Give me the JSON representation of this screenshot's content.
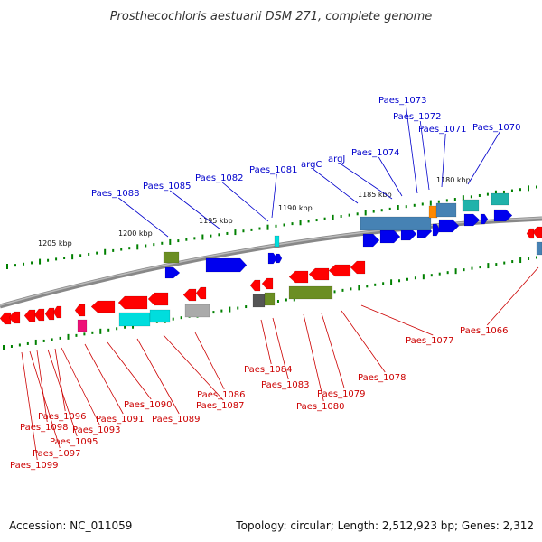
{
  "title": "Prosthecochloris aestuarii DSM 271, complete genome",
  "footer": {
    "accession": "Accession: NC_011059",
    "info": "Topology: circular; Length: 2,512,923 bp; Genes: 2,312"
  },
  "colors": {
    "red": "#ff0000",
    "blue": "#0000ee",
    "cyan": "#00dddd",
    "steelblue": "#4682b4",
    "olive": "#6b8e23",
    "gray": "#aaaaaa",
    "magenta": "#ee1177",
    "orange": "#ff8800",
    "teal": "#20b2aa",
    "tick_green": "#008000",
    "backbone": "#888888",
    "label_blue": "#0000cc",
    "label_red": "#cc0000"
  },
  "scale_ticks": [
    "1205 kbp",
    "1200 kbp",
    "1195 kbp",
    "1190 kbp",
    "1185 kbp",
    "1180 kbp"
  ],
  "top_labels": [
    "Paes_1088",
    "Paes_1085",
    "Paes_1082",
    "Paes_1081",
    "argC",
    "argJ",
    "Paes_1074",
    "Paes_1073",
    "Paes_1072",
    "Paes_1071",
    "Paes_1070"
  ],
  "bottom_labels": [
    "Paes_1099",
    "Paes_1097",
    "Paes_1098",
    "Paes_1095",
    "Paes_1096",
    "Paes_1093",
    "Paes_1091",
    "Paes_1090",
    "Paes_1089",
    "Paes_1087",
    "Paes_1086",
    "Paes_1084",
    "Paes_1083",
    "Paes_1080",
    "Paes_1079",
    "Paes_1078",
    "Paes_1077",
    "Paes_1066"
  ]
}
